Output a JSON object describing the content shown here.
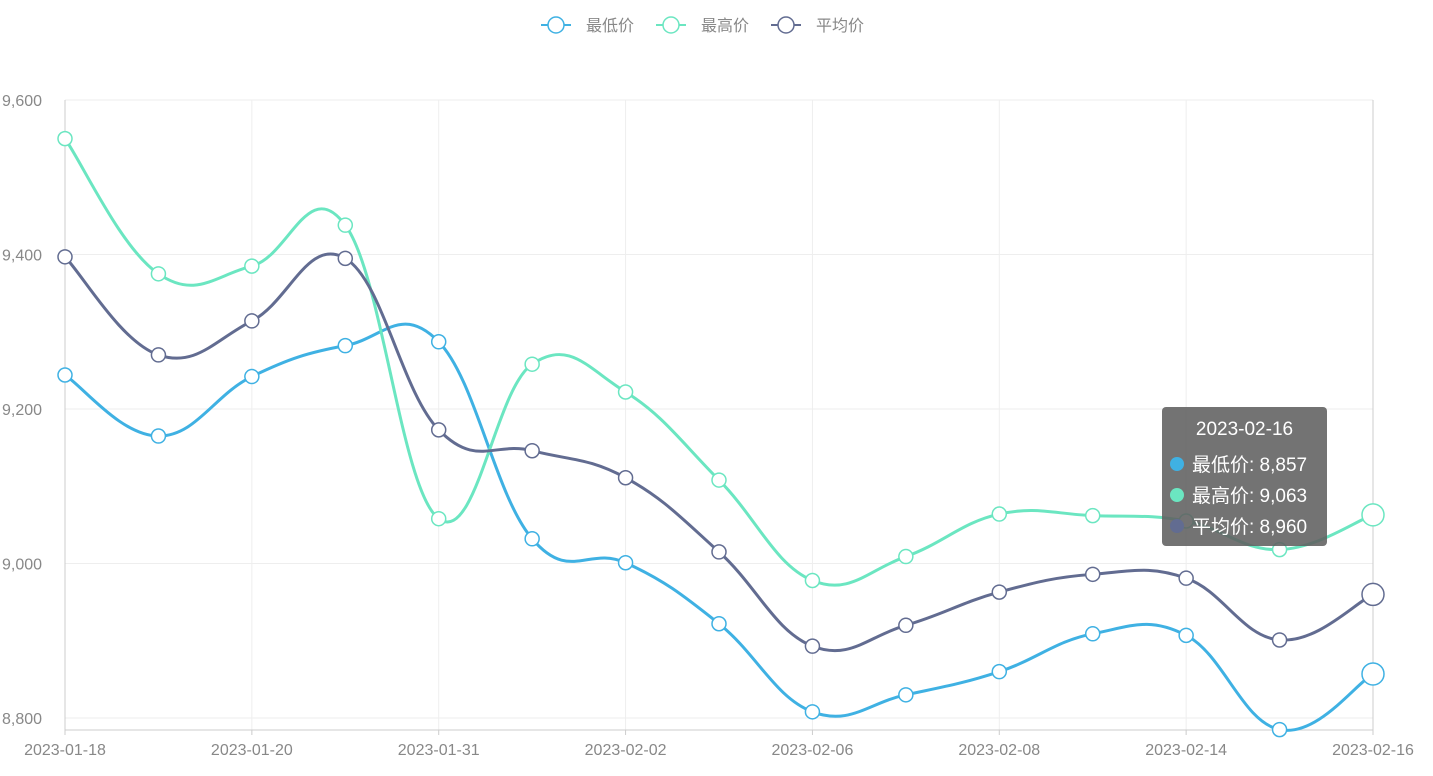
{
  "legend": [
    {
      "label": "最低价",
      "color": "#3fb1e3"
    },
    {
      "label": "最高价",
      "color": "#6be6c1"
    },
    {
      "label": "平均价",
      "color": "#626c91"
    }
  ],
  "chart_data": {
    "type": "line",
    "x_labels": [
      "2023-01-18",
      "2023-01-20",
      "2023-01-31",
      "2023-02-02",
      "2023-02-06",
      "2023-02-08",
      "2023-02-14",
      "2023-02-16"
    ],
    "ylim": [
      8800,
      9600
    ],
    "y_ticks": [
      8800,
      9000,
      9200,
      9400,
      9600
    ],
    "y_tick_labels": [
      "8,800",
      "9,000",
      "9,200",
      "9,400",
      "9,600"
    ],
    "point_count": 15,
    "series": [
      {
        "name": "最低价",
        "color": "#3fb1e3",
        "values": [
          9244,
          9165,
          9242,
          9282,
          9287,
          9032,
          9001,
          8922,
          8808,
          8830,
          8860,
          8909,
          8907,
          8785,
          8857
        ]
      },
      {
        "name": "最高价",
        "color": "#6be6c1",
        "values": [
          9550,
          9375,
          9385,
          9438,
          9058,
          9258,
          9222,
          9108,
          8978,
          9009,
          9064,
          9062,
          9055,
          9018,
          9063
        ]
      },
      {
        "name": "平均价",
        "color": "#626c91",
        "values": [
          9397,
          9270,
          9314,
          9395,
          9173,
          9146,
          9111,
          9015,
          8893,
          8920,
          8963,
          8986,
          8981,
          8901,
          8960
        ]
      }
    ],
    "grid": true,
    "legend_position": "top-center",
    "smooth": true
  },
  "tooltip": {
    "title": "2023-02-16",
    "rows": [
      {
        "text": "最低价: 8,857",
        "color": "#3fb1e3"
      },
      {
        "text": "最高价: 9,063",
        "color": "#6be6c1"
      },
      {
        "text": "平均价: 8,960",
        "color": "#626c91"
      }
    ]
  }
}
